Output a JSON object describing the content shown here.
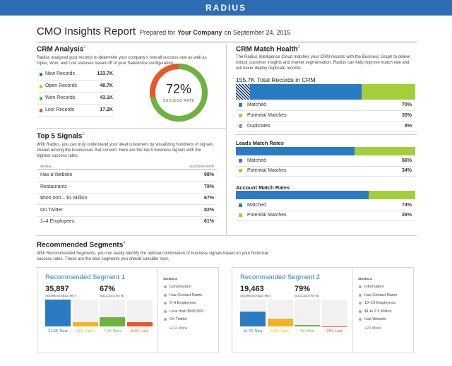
{
  "header": {
    "logo": "RADIUS"
  },
  "title": {
    "text": "CMO Insights Report",
    "prepared": "Prepared for",
    "company": "Your Company",
    "date": "on September 24, 2015"
  },
  "crm_analysis": {
    "title": "CRM Analysis",
    "note": "3",
    "description": "Radius analyzed your records to determine your company's overall success rate as well as Open, Won, and Lost statuses based off of your Salesforce configuration.",
    "records": [
      {
        "name": "New Records",
        "value": "133.7K",
        "color": "#2b7bc4"
      },
      {
        "name": "Open Records",
        "value": "48.7K",
        "color": "#f4b223"
      },
      {
        "name": "Won Records",
        "value": "43.1K",
        "color": "#6cb33f"
      },
      {
        "name": "Lost Records",
        "value": "17.2K",
        "color": "#e8572a"
      }
    ],
    "success_rate": {
      "value": 72,
      "label": "72%",
      "caption": "SUCCESS RATE",
      "color": "#6cb33f",
      "rest_color": "#e8572a"
    }
  },
  "top_signals": {
    "title": "Top 5 Signals",
    "note": "2",
    "description": "With Radius, you can truly understand your ideal customers by visualizing hundreds of signals shared among the businesses that convert. Here are the top 5 business signals with the highest success rates.",
    "columns": [
      "SIGNAL",
      "SUCCESS RATE"
    ],
    "rows": [
      [
        "Has a Website",
        "98%"
      ],
      [
        "Restaurants",
        "79%"
      ],
      [
        "$500,000 – $1 Million",
        "67%"
      ],
      [
        "On Twitter",
        "82%"
      ],
      [
        "1–4 Employees",
        "61%"
      ]
    ]
  },
  "match_health": {
    "title": "CRM Match Health",
    "note": "3",
    "description": "The Radius Intelligence Cloud matches your CRM records with the Business Graph to deliver robust customer insights and market segmentation. Radius can help improve match rate and will never deploy duplicate records.",
    "total": "155.7K",
    "total_label": "Total Records in CRM",
    "crm": {
      "segments": [
        {
          "name": "Matched",
          "value": 70,
          "label": "70%",
          "color": "#2b7bc4"
        },
        {
          "name": "Potential Matches",
          "value": 30,
          "label": "30%",
          "color": "#a5cf3a"
        }
      ],
      "duplicates": {
        "name": "Duplicates",
        "value": 8,
        "label": "8%"
      }
    },
    "leads": {
      "title": "Leads Match Rates",
      "segments": [
        {
          "name": "Matched",
          "value": 66,
          "label": "66%",
          "color": "#2b7bc4"
        },
        {
          "name": "Potential Matches",
          "value": 34,
          "label": "34%",
          "color": "#a5cf3a"
        }
      ]
    },
    "accounts": {
      "title": "Account Match Rates",
      "segments": [
        {
          "name": "Matched",
          "value": 74,
          "label": "74%",
          "color": "#2b7bc4"
        },
        {
          "name": "Potential Matches",
          "value": 26,
          "label": "26%",
          "color": "#a5cf3a"
        }
      ]
    }
  },
  "recommended": {
    "title": "Recommended Segments",
    "note": "4",
    "description": "With Recommended Segments, you can easily identify the optimal combination of business signals based on your historical success rates. These are the best segments you should consider next.",
    "segments": [
      {
        "title": "Recommended Segment 1",
        "market": "35,897",
        "market_label": "ADDRESSABLE MKT",
        "rate": "67%",
        "rate_label": "SUCCESS RATE",
        "bars": [
          {
            "value": 21500,
            "label": "21.5K",
            "name": "New",
            "color": "#2b7bc4"
          },
          {
            "value": 3600,
            "label": "3.6K",
            "name": "Open",
            "color": "#f4b223"
          },
          {
            "value": 7200,
            "label": "7.2K",
            "name": "Won",
            "color": "#6cb33f"
          },
          {
            "value": 3600,
            "label": "3.6K",
            "name": "Lost",
            "color": "#e8572a"
          }
        ],
        "signals_label": "SIGNALS",
        "signals": [
          "Construction",
          "Has Contact Name",
          "5–9 Employees",
          "Less than $500,000",
          "On Twitter"
        ],
        "more": "+1.2 More"
      },
      {
        "title": "Recommended Segment 2",
        "market": "19,463",
        "market_label": "ADDRESSABLE MKT",
        "rate": "79%",
        "rate_label": "SUCCESS RATE",
        "bars": [
          {
            "value": 11700,
            "label": "11.7K",
            "name": "New",
            "color": "#2b7bc4"
          },
          {
            "value": 6500,
            "label": "6.5K",
            "name": "Open",
            "color": "#f4b223"
          },
          {
            "value": 1000,
            "label": "1K",
            "name": "Won",
            "color": "#6cb33f"
          },
          {
            "value": 259,
            "label": "259",
            "name": "Lost",
            "color": "#e8572a"
          }
        ],
        "signals_label": "SIGNALS",
        "signals": [
          "Information",
          "Has Contact Name",
          "10–19 Employees",
          "$1 to 2.5 Million",
          "Has Website"
        ],
        "more": "+10 More"
      }
    ]
  }
}
